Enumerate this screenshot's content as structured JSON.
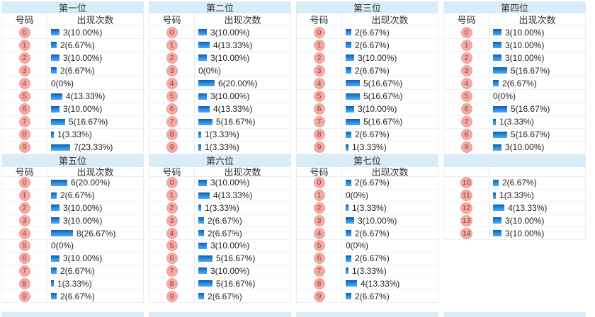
{
  "headers": {
    "number": "号码",
    "count": "出现次数"
  },
  "colors": {
    "title_bg": "#d9ecf8",
    "table_border": "#e6eef5",
    "badge_bg": "#f6a8a2",
    "badge_text": "#8d423f",
    "bar_top": "#0f5ab2",
    "bar_bottom": "#4aa8f2",
    "text": "#1f1f1f"
  },
  "sections": [
    {
      "name": "top",
      "tables": [
        {
          "title": "第一位",
          "show_headers": true,
          "rows": [
            {
              "num": "0",
              "count": 3,
              "text": "3(10.00%)"
            },
            {
              "num": "1",
              "count": 2,
              "text": "2(6.67%)"
            },
            {
              "num": "2",
              "count": 3,
              "text": "3(10.00%)"
            },
            {
              "num": "3",
              "count": 2,
              "text": "2(6.67%)"
            },
            {
              "num": "4",
              "count": 0,
              "text": "0(0%)"
            },
            {
              "num": "5",
              "count": 4,
              "text": "4(13.33%)"
            },
            {
              "num": "6",
              "count": 3,
              "text": "3(10.00%)"
            },
            {
              "num": "7",
              "count": 5,
              "text": "5(16.67%)"
            },
            {
              "num": "8",
              "count": 1,
              "text": "1(3.33%)"
            },
            {
              "num": "9",
              "count": 7,
              "text": "7(23.33%)"
            }
          ]
        },
        {
          "title": "第二位",
          "show_headers": true,
          "rows": [
            {
              "num": "0",
              "count": 3,
              "text": "3(10.00%)"
            },
            {
              "num": "1",
              "count": 4,
              "text": "4(13.33%)"
            },
            {
              "num": "2",
              "count": 3,
              "text": "3(10.00%)"
            },
            {
              "num": "3",
              "count": 0,
              "text": "0(0%)"
            },
            {
              "num": "4",
              "count": 6,
              "text": "6(20.00%)"
            },
            {
              "num": "5",
              "count": 3,
              "text": "3(10.00%)"
            },
            {
              "num": "6",
              "count": 4,
              "text": "4(13.33%)"
            },
            {
              "num": "7",
              "count": 5,
              "text": "5(16.67%)"
            },
            {
              "num": "8",
              "count": 1,
              "text": "1(3.33%)"
            },
            {
              "num": "9",
              "count": 1,
              "text": "1(3.33%)"
            }
          ]
        },
        {
          "title": "第三位",
          "show_headers": true,
          "rows": [
            {
              "num": "0",
              "count": 2,
              "text": "2(6.67%)"
            },
            {
              "num": "1",
              "count": 2,
              "text": "2(6.67%)"
            },
            {
              "num": "2",
              "count": 3,
              "text": "3(10.00%)"
            },
            {
              "num": "3",
              "count": 2,
              "text": "2(6.67%)"
            },
            {
              "num": "4",
              "count": 5,
              "text": "5(16.67%)"
            },
            {
              "num": "5",
              "count": 5,
              "text": "5(16.67%)"
            },
            {
              "num": "6",
              "count": 3,
              "text": "3(10.00%)"
            },
            {
              "num": "7",
              "count": 5,
              "text": "5(16.67%)"
            },
            {
              "num": "8",
              "count": 2,
              "text": "2(6.67%)"
            },
            {
              "num": "9",
              "count": 1,
              "text": "1(3.33%)"
            }
          ]
        },
        {
          "title": "第四位",
          "show_headers": true,
          "rows": [
            {
              "num": "0",
              "count": 3,
              "text": "3(10.00%)"
            },
            {
              "num": "1",
              "count": 3,
              "text": "3(10.00%)"
            },
            {
              "num": "2",
              "count": 3,
              "text": "3(10.00%)"
            },
            {
              "num": "3",
              "count": 5,
              "text": "5(16.67%)"
            },
            {
              "num": "4",
              "count": 2,
              "text": "2(6.67%)"
            },
            {
              "num": "5",
              "count": 0,
              "text": "0(0%)"
            },
            {
              "num": "6",
              "count": 5,
              "text": "5(16.67%)"
            },
            {
              "num": "7",
              "count": 1,
              "text": "1(3.33%)"
            },
            {
              "num": "8",
              "count": 5,
              "text": "5(16.67%)"
            },
            {
              "num": "9",
              "count": 3,
              "text": "3(10.00%)"
            }
          ]
        }
      ]
    },
    {
      "name": "bottom",
      "tables": [
        {
          "title": "第五位",
          "show_headers": true,
          "rows": [
            {
              "num": "0",
              "count": 6,
              "text": "6(20.00%)"
            },
            {
              "num": "1",
              "count": 2,
              "text": "2(6.67%)"
            },
            {
              "num": "2",
              "count": 3,
              "text": "3(10.00%)"
            },
            {
              "num": "3",
              "count": 3,
              "text": "3(10.00%)"
            },
            {
              "num": "4",
              "count": 8,
              "text": "8(26.67%)"
            },
            {
              "num": "5",
              "count": 0,
              "text": "0(0%)"
            },
            {
              "num": "6",
              "count": 3,
              "text": "3(10.00%)"
            },
            {
              "num": "7",
              "count": 2,
              "text": "2(6.67%)"
            },
            {
              "num": "8",
              "count": 1,
              "text": "1(3.33%)"
            },
            {
              "num": "9",
              "count": 2,
              "text": "2(6.67%)"
            }
          ]
        },
        {
          "title": "第六位",
          "show_headers": true,
          "rows": [
            {
              "num": "0",
              "count": 3,
              "text": "3(10.00%)"
            },
            {
              "num": "1",
              "count": 4,
              "text": "4(13.33%)"
            },
            {
              "num": "2",
              "count": 1,
              "text": "1(3.33%)"
            },
            {
              "num": "3",
              "count": 2,
              "text": "2(6.67%)"
            },
            {
              "num": "4",
              "count": 2,
              "text": "2(6.67%)"
            },
            {
              "num": "5",
              "count": 3,
              "text": "3(10.00%)"
            },
            {
              "num": "6",
              "count": 5,
              "text": "5(16.67%)"
            },
            {
              "num": "7",
              "count": 3,
              "text": "3(10.00%)"
            },
            {
              "num": "8",
              "count": 5,
              "text": "5(16.67%)"
            },
            {
              "num": "9",
              "count": 2,
              "text": "2(6.67%)"
            }
          ]
        },
        {
          "title": "第七位",
          "show_headers": true,
          "rows": [
            {
              "num": "0",
              "count": 2,
              "text": "2(6.67%)"
            },
            {
              "num": "1",
              "count": 0,
              "text": "0(0%)"
            },
            {
              "num": "2",
              "count": 1,
              "text": "1(3.33%)"
            },
            {
              "num": "3",
              "count": 3,
              "text": "3(10.00%)"
            },
            {
              "num": "4",
              "count": 2,
              "text": "2(6.67%)"
            },
            {
              "num": "5",
              "count": 0,
              "text": "0(0%)"
            },
            {
              "num": "6",
              "count": 2,
              "text": "2(6.67%)"
            },
            {
              "num": "7",
              "count": 1,
              "text": "1(3.33%)"
            },
            {
              "num": "8",
              "count": 4,
              "text": "4(13.33%)"
            },
            {
              "num": "9",
              "count": 2,
              "text": "2(6.67%)"
            }
          ]
        },
        {
          "title": "",
          "show_headers": false,
          "rows": [
            {
              "num": "10",
              "count": 2,
              "text": "2(6.67%)"
            },
            {
              "num": "11",
              "count": 1,
              "text": "1(3.33%)"
            },
            {
              "num": "12",
              "count": 4,
              "text": "4(13.33%)"
            },
            {
              "num": "13",
              "count": 3,
              "text": "3(10.00%)"
            },
            {
              "num": "14",
              "count": 3,
              "text": "3(10.00%)"
            }
          ]
        }
      ]
    }
  ],
  "chart_data": [
    {
      "type": "bar",
      "title": "第一位",
      "xlabel": "号码",
      "ylabel": "出现次数",
      "categories": [
        "0",
        "1",
        "2",
        "3",
        "4",
        "5",
        "6",
        "7",
        "8",
        "9"
      ],
      "values": [
        3,
        2,
        3,
        2,
        0,
        4,
        3,
        5,
        1,
        7
      ],
      "percents": [
        10.0,
        6.67,
        10.0,
        6.67,
        0,
        13.33,
        10.0,
        16.67,
        3.33,
        23.33
      ]
    },
    {
      "type": "bar",
      "title": "第二位",
      "xlabel": "号码",
      "ylabel": "出现次数",
      "categories": [
        "0",
        "1",
        "2",
        "3",
        "4",
        "5",
        "6",
        "7",
        "8",
        "9"
      ],
      "values": [
        3,
        4,
        3,
        0,
        6,
        3,
        4,
        5,
        1,
        1
      ],
      "percents": [
        10.0,
        13.33,
        10.0,
        0,
        20.0,
        10.0,
        13.33,
        16.67,
        3.33,
        3.33
      ]
    },
    {
      "type": "bar",
      "title": "第三位",
      "xlabel": "号码",
      "ylabel": "出现次数",
      "categories": [
        "0",
        "1",
        "2",
        "3",
        "4",
        "5",
        "6",
        "7",
        "8",
        "9"
      ],
      "values": [
        2,
        2,
        3,
        2,
        5,
        5,
        3,
        5,
        2,
        1
      ],
      "percents": [
        6.67,
        6.67,
        10.0,
        6.67,
        16.67,
        16.67,
        10.0,
        16.67,
        6.67,
        3.33
      ]
    },
    {
      "type": "bar",
      "title": "第四位",
      "xlabel": "号码",
      "ylabel": "出现次数",
      "categories": [
        "0",
        "1",
        "2",
        "3",
        "4",
        "5",
        "6",
        "7",
        "8",
        "9"
      ],
      "values": [
        3,
        3,
        3,
        5,
        2,
        0,
        5,
        1,
        5,
        3
      ],
      "percents": [
        10.0,
        10.0,
        10.0,
        16.67,
        6.67,
        0,
        16.67,
        3.33,
        16.67,
        10.0
      ]
    },
    {
      "type": "bar",
      "title": "第五位",
      "xlabel": "号码",
      "ylabel": "出现次数",
      "categories": [
        "0",
        "1",
        "2",
        "3",
        "4",
        "5",
        "6",
        "7",
        "8",
        "9"
      ],
      "values": [
        6,
        2,
        3,
        3,
        8,
        0,
        3,
        2,
        1,
        2
      ],
      "percents": [
        20.0,
        6.67,
        10.0,
        10.0,
        26.67,
        0,
        10.0,
        6.67,
        3.33,
        6.67
      ]
    },
    {
      "type": "bar",
      "title": "第六位",
      "xlabel": "号码",
      "ylabel": "出现次数",
      "categories": [
        "0",
        "1",
        "2",
        "3",
        "4",
        "5",
        "6",
        "7",
        "8",
        "9"
      ],
      "values": [
        3,
        4,
        1,
        2,
        2,
        3,
        5,
        3,
        5,
        2
      ],
      "percents": [
        10.0,
        13.33,
        3.33,
        6.67,
        6.67,
        10.0,
        16.67,
        10.0,
        16.67,
        6.67
      ]
    },
    {
      "type": "bar",
      "title": "第七位",
      "xlabel": "号码",
      "ylabel": "出现次数",
      "categories": [
        "0",
        "1",
        "2",
        "3",
        "4",
        "5",
        "6",
        "7",
        "8",
        "9",
        "10",
        "11",
        "12",
        "13",
        "14"
      ],
      "values": [
        2,
        0,
        1,
        3,
        2,
        0,
        2,
        1,
        4,
        2,
        2,
        1,
        4,
        3,
        3
      ],
      "percents": [
        6.67,
        0,
        3.33,
        10.0,
        6.67,
        0,
        6.67,
        3.33,
        13.33,
        6.67,
        6.67,
        3.33,
        13.33,
        10.0,
        10.0
      ]
    }
  ]
}
